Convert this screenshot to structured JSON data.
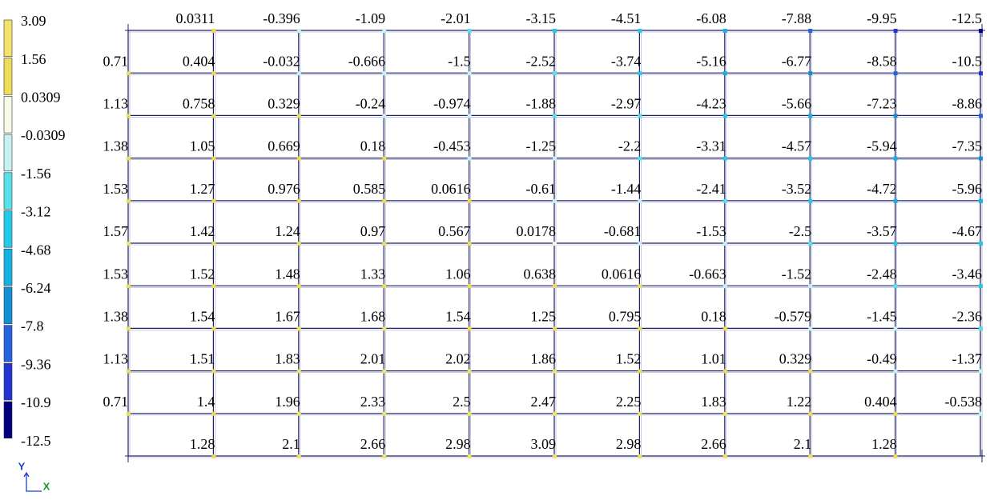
{
  "legend": {
    "labels": [
      "3.09",
      "1.56",
      "0.0309",
      "-0.0309",
      "-1.56",
      "-3.12",
      "-4.68",
      "-6.24",
      "-7.8",
      "-9.36",
      "-10.9",
      "-12.5"
    ],
    "colors": [
      "#f3e36a",
      "#efdc58",
      "#f7fbe6",
      "#c6f3ef",
      "#55e2ea",
      "#22cbe8",
      "#12b2e2",
      "#1190d8",
      "#2464e0",
      "#2434d4",
      "#000080"
    ]
  },
  "grid": {
    "rows": [
      {
        "left": null,
        "values": [
          "0.0311",
          "-0.396",
          "-1.09",
          "-2.01",
          "-3.15",
          "-4.51",
          "-6.08",
          "-7.88",
          "-9.95",
          "-12.5"
        ]
      },
      {
        "left": "0.71",
        "values": [
          "0.404",
          "-0.032",
          "-0.666",
          "-1.5",
          "-2.52",
          "-3.74",
          "-5.16",
          "-6.77",
          "-8.58",
          "-10.5"
        ]
      },
      {
        "left": "1.13",
        "values": [
          "0.758",
          "0.329",
          "-0.24",
          "-0.974",
          "-1.88",
          "-2.97",
          "-4.23",
          "-5.66",
          "-7.23",
          "-8.86"
        ]
      },
      {
        "left": "1.38",
        "values": [
          "1.05",
          "0.669",
          "0.18",
          "-0.453",
          "-1.25",
          "-2.2",
          "-3.31",
          "-4.57",
          "-5.94",
          "-7.35"
        ]
      },
      {
        "left": "1.53",
        "values": [
          "1.27",
          "0.976",
          "0.585",
          "0.0616",
          "-0.61",
          "-1.44",
          "-2.41",
          "-3.52",
          "-4.72",
          "-5.96"
        ]
      },
      {
        "left": "1.57",
        "values": [
          "1.42",
          "1.24",
          "0.97",
          "0.567",
          "0.0178",
          "-0.681",
          "-1.53",
          "-2.5",
          "-3.57",
          "-4.67"
        ]
      },
      {
        "left": "1.53",
        "values": [
          "1.52",
          "1.48",
          "1.33",
          "1.06",
          "0.638",
          "0.0616",
          "-0.663",
          "-1.52",
          "-2.48",
          "-3.46"
        ]
      },
      {
        "left": "1.38",
        "values": [
          "1.54",
          "1.67",
          "1.68",
          "1.54",
          "1.25",
          "0.795",
          "0.18",
          "-0.579",
          "-1.45",
          "-2.36"
        ]
      },
      {
        "left": "1.13",
        "values": [
          "1.51",
          "1.83",
          "2.01",
          "2.02",
          "1.86",
          "1.52",
          "1.01",
          "0.329",
          "-0.49",
          "-1.37"
        ]
      },
      {
        "left": "0.71",
        "values": [
          "1.4",
          "1.96",
          "2.33",
          "2.5",
          "2.47",
          "2.25",
          "1.83",
          "1.22",
          "0.404",
          "-0.538"
        ]
      },
      {
        "left": null,
        "values": [
          "1.28",
          "2.1",
          "2.66",
          "2.98",
          "3.09",
          "2.98",
          "2.66",
          "2.1",
          "1.28",
          null
        ]
      }
    ]
  },
  "axis": {
    "y": "Y",
    "x": "X"
  }
}
